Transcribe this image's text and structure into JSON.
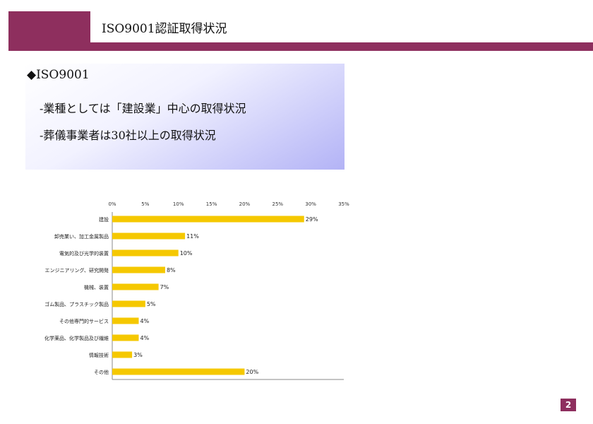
{
  "header": {
    "title": "ISO9001認証取得状況"
  },
  "bullets": {
    "heading": "◆ISO9001",
    "lines": [
      "-業種としては「建設業」中心の取得状況",
      "-葬儀事業者は30社以上の取得状況"
    ]
  },
  "chart_data": {
    "type": "bar",
    "orientation": "horizontal",
    "categories": [
      "建設",
      "卸売業い、加工金属製品",
      "電気的及び光学的装置",
      "エンジニアリング、研究開発",
      "機械、装置",
      "ゴム製品、プラスチック製品",
      "その他専門的サービス",
      "化学薬品、化学製品及び繊維",
      "情報技術",
      "その他"
    ],
    "values": [
      29,
      11,
      10,
      8,
      7,
      5,
      4,
      4,
      3,
      20
    ],
    "value_labels": [
      "29%",
      "11%",
      "10%",
      "8%",
      "7%",
      "5%",
      "4%",
      "4%",
      "3%",
      "20%"
    ],
    "x_ticks": [
      "0%",
      "5%",
      "10%",
      "15%",
      "20%",
      "25%",
      "30%",
      "35%"
    ],
    "xlim": [
      0,
      35
    ],
    "tick_position": "top",
    "grid": false,
    "colors": {
      "bar": "#f5c800"
    }
  },
  "footer": {
    "page_number": "2"
  },
  "colors": {
    "accent": "#8e2f5e"
  }
}
